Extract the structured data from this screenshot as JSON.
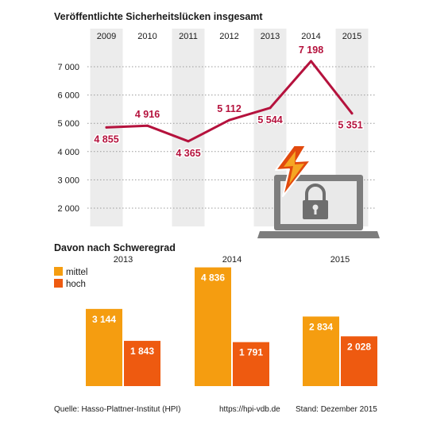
{
  "titles": {
    "top": "Veröffentlichte Sicherheitslücken insgesamt",
    "bottom": "Davon nach Schweregrad"
  },
  "footer": {
    "source": "Quelle: Hasso-Plattner-Institut (HPI)",
    "url": "https://hpi-vdb.de",
    "stand": "Stand: Dezember 2015"
  },
  "colors": {
    "line": "#b5123d",
    "mittel": "#f59d10",
    "hoch": "#ee5a10",
    "band": "#ececec",
    "grid": "#9a9a9a"
  },
  "icon": "laptop-lock-lightning-icon",
  "chart_data": [
    {
      "type": "line",
      "title": "Veröffentlichte Sicherheitslücken insgesamt",
      "x": [
        "2009",
        "2010",
        "2011",
        "2012",
        "2013",
        "2014",
        "2015"
      ],
      "values": [
        4855,
        4916,
        4365,
        5112,
        5544,
        7198,
        5351
      ],
      "value_labels": [
        "4 855",
        "4 916",
        "4 365",
        "5 112",
        "5 544",
        "7 198",
        "5 351"
      ],
      "yticks": [
        2000,
        3000,
        4000,
        5000,
        6000,
        7000
      ],
      "ytick_labels": [
        "2 000",
        "3 000",
        "4 000",
        "5 000",
        "6 000",
        "7 000"
      ],
      "ylim": [
        1700,
        7600
      ],
      "grid": "dotted horizontal"
    },
    {
      "type": "bar",
      "title": "Davon nach Schweregrad",
      "categories": [
        "2013",
        "2014",
        "2015"
      ],
      "series": [
        {
          "name": "mittel",
          "values": [
            3144,
            4836,
            2834
          ],
          "labels": [
            "3 144",
            "4 836",
            "2 834"
          ]
        },
        {
          "name": "hoch",
          "values": [
            1843,
            1791,
            2028
          ],
          "labels": [
            "1 843",
            "1 791",
            "2 028"
          ]
        }
      ],
      "legend": "top-left"
    }
  ]
}
